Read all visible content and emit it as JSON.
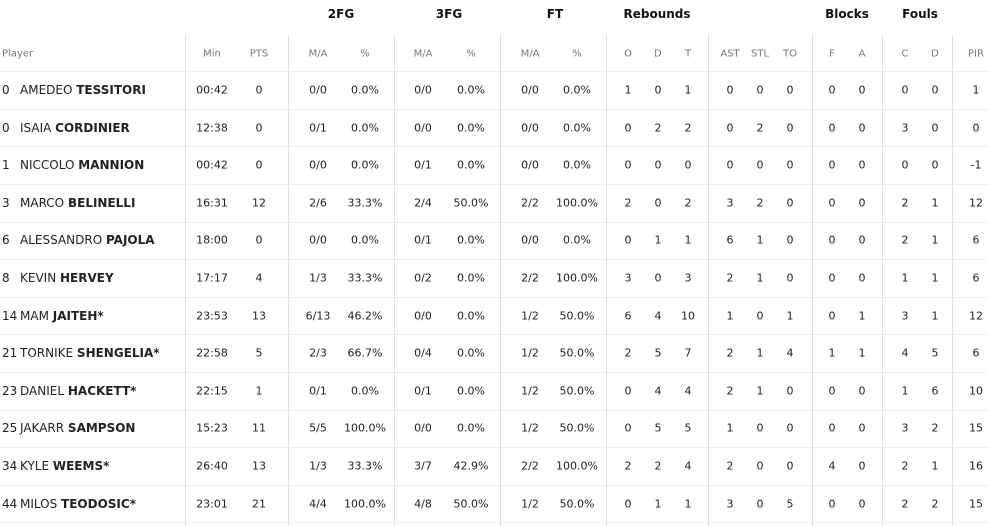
{
  "header": {
    "groups": [
      "2FG",
      "3FG",
      "FT",
      "Rebounds",
      "Blocks",
      "Fouls"
    ],
    "columns": [
      "Player",
      "Min",
      "PTS",
      "M/A",
      "%",
      "M/A",
      "%",
      "M/A",
      "%",
      "O",
      "D",
      "T",
      "AST",
      "STL",
      "TO",
      "F",
      "A",
      "C",
      "D",
      "PIR"
    ]
  },
  "rows": [
    {
      "number": "0",
      "first_name": "AMEDEO",
      "last_name": "TESSITORI",
      "stats": [
        "00:42",
        "0",
        "0/0",
        "0.0%",
        "0/0",
        "0.0%",
        "0/0",
        "0.0%",
        "1",
        "0",
        "1",
        "0",
        "0",
        "0",
        "0",
        "0",
        "0",
        "0",
        "1"
      ]
    },
    {
      "number": "0",
      "first_name": "ISAIA",
      "last_name": "CORDINIER",
      "stats": [
        "12:38",
        "0",
        "0/1",
        "0.0%",
        "0/0",
        "0.0%",
        "0/0",
        "0.0%",
        "0",
        "2",
        "2",
        "0",
        "2",
        "0",
        "0",
        "0",
        "3",
        "0",
        "0"
      ]
    },
    {
      "number": "1",
      "first_name": "NICCOLO",
      "last_name": "MANNION",
      "stats": [
        "00:42",
        "0",
        "0/0",
        "0.0%",
        "0/1",
        "0.0%",
        "0/0",
        "0.0%",
        "0",
        "0",
        "0",
        "0",
        "0",
        "0",
        "0",
        "0",
        "0",
        "0",
        "-1"
      ]
    },
    {
      "number": "3",
      "first_name": "MARCO",
      "last_name": "BELINELLI",
      "stats": [
        "16:31",
        "12",
        "2/6",
        "33.3%",
        "2/4",
        "50.0%",
        "2/2",
        "100.0%",
        "2",
        "0",
        "2",
        "3",
        "2",
        "0",
        "0",
        "0",
        "2",
        "1",
        "12"
      ]
    },
    {
      "number": "6",
      "first_name": "ALESSANDRO",
      "last_name": "PAJOLA",
      "stats": [
        "18:00",
        "0",
        "0/0",
        "0.0%",
        "0/1",
        "0.0%",
        "0/0",
        "0.0%",
        "0",
        "1",
        "1",
        "6",
        "1",
        "0",
        "0",
        "0",
        "2",
        "1",
        "6"
      ]
    },
    {
      "number": "8",
      "first_name": "KEVIN",
      "last_name": "HERVEY",
      "stats": [
        "17:17",
        "4",
        "1/3",
        "33.3%",
        "0/2",
        "0.0%",
        "2/2",
        "100.0%",
        "3",
        "0",
        "3",
        "2",
        "1",
        "0",
        "0",
        "0",
        "1",
        "1",
        "6"
      ]
    },
    {
      "number": "14",
      "first_name": "MAM",
      "last_name": "JAITEH*",
      "stats": [
        "23:53",
        "13",
        "6/13",
        "46.2%",
        "0/0",
        "0.0%",
        "1/2",
        "50.0%",
        "6",
        "4",
        "10",
        "1",
        "0",
        "1",
        "0",
        "1",
        "3",
        "1",
        "12"
      ]
    },
    {
      "number": "21",
      "first_name": "TORNIKE",
      "last_name": "SHENGELIA*",
      "stats": [
        "22:58",
        "5",
        "2/3",
        "66.7%",
        "0/4",
        "0.0%",
        "1/2",
        "50.0%",
        "2",
        "5",
        "7",
        "2",
        "1",
        "4",
        "1",
        "1",
        "4",
        "5",
        "6"
      ]
    },
    {
      "number": "23",
      "first_name": "DANIEL",
      "last_name": "HACKETT*",
      "stats": [
        "22:15",
        "1",
        "0/1",
        "0.0%",
        "0/1",
        "0.0%",
        "1/2",
        "50.0%",
        "0",
        "4",
        "4",
        "2",
        "1",
        "0",
        "0",
        "0",
        "1",
        "6",
        "10"
      ]
    },
    {
      "number": "25",
      "first_name": "JAKARR",
      "last_name": "SAMPSON",
      "stats": [
        "15:23",
        "11",
        "5/5",
        "100.0%",
        "0/0",
        "0.0%",
        "1/2",
        "50.0%",
        "0",
        "5",
        "5",
        "1",
        "0",
        "0",
        "0",
        "0",
        "3",
        "2",
        "15"
      ]
    },
    {
      "number": "34",
      "first_name": "KYLE",
      "last_name": "WEEMS*",
      "stats": [
        "26:40",
        "13",
        "1/3",
        "33.3%",
        "3/7",
        "42.9%",
        "2/2",
        "100.0%",
        "2",
        "2",
        "4",
        "2",
        "0",
        "0",
        "4",
        "0",
        "2",
        "1",
        "16"
      ]
    },
    {
      "number": "44",
      "first_name": "MILOS",
      "last_name": "TEODOSIC*",
      "stats": [
        "23:01",
        "21",
        "4/4",
        "100.0%",
        "4/8",
        "50.0%",
        "1/2",
        "50.0%",
        "0",
        "1",
        "1",
        "3",
        "0",
        "5",
        "0",
        "0",
        "2",
        "2",
        "15"
      ]
    }
  ]
}
